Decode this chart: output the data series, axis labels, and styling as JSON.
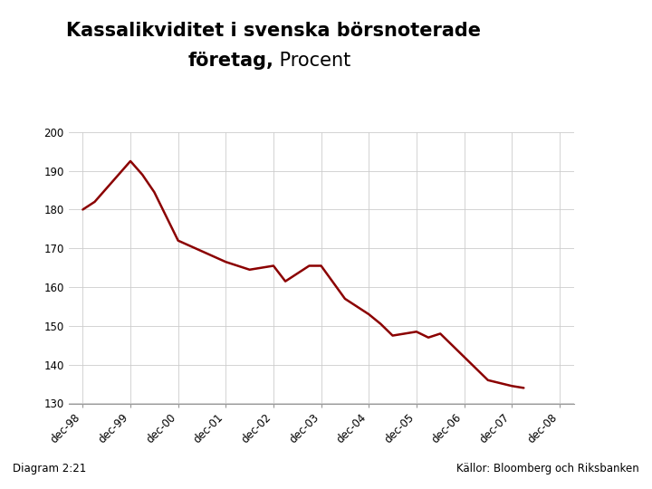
{
  "title_line1_bold": "Kassalikviditet i svenska börsnoterade",
  "title_line2_bold": "företag,",
  "title_line2_normal": " Procent",
  "diagram_label": "Diagram 2:21",
  "source_label": "Källor: Bloomberg och Riksbanken",
  "line_color": "#8B0000",
  "line_width": 1.8,
  "background_color": "#FFFFFF",
  "footer_bar_color": "#1a4a8a",
  "ylabel_min": 130,
  "ylabel_max": 200,
  "yticks": [
    130,
    140,
    150,
    160,
    170,
    180,
    190,
    200
  ],
  "x_labels": [
    "dec-98",
    "dec-99",
    "dec-00",
    "dec-01",
    "dec-02",
    "dec-03",
    "dec-04",
    "dec-05",
    "dec-06",
    "dec-07",
    "dec-08"
  ],
  "x_values": [
    0,
    1,
    2,
    3,
    4,
    5,
    6,
    7,
    8,
    9,
    10
  ],
  "y_values": [
    180.0,
    182.0,
    192.5,
    189.0,
    184.5,
    172.0,
    166.5,
    164.5,
    165.5,
    161.5,
    165.5,
    165.5,
    157.0,
    155.0,
    153.0,
    150.5,
    147.5,
    148.5,
    147.0,
    148.0,
    136.0,
    134.5,
    134.0
  ],
  "x_data_values": [
    0.0,
    0.25,
    1.0,
    1.25,
    1.5,
    2.0,
    3.0,
    3.5,
    4.0,
    4.25,
    4.75,
    5.0,
    5.5,
    5.75,
    6.0,
    6.25,
    6.5,
    7.0,
    7.25,
    7.5,
    8.5,
    9.0,
    9.25
  ],
  "logo_color": "#1a3f7a",
  "title_fontsize": 15,
  "tick_fontsize": 8.5,
  "footer_text_fontsize": 8.5
}
